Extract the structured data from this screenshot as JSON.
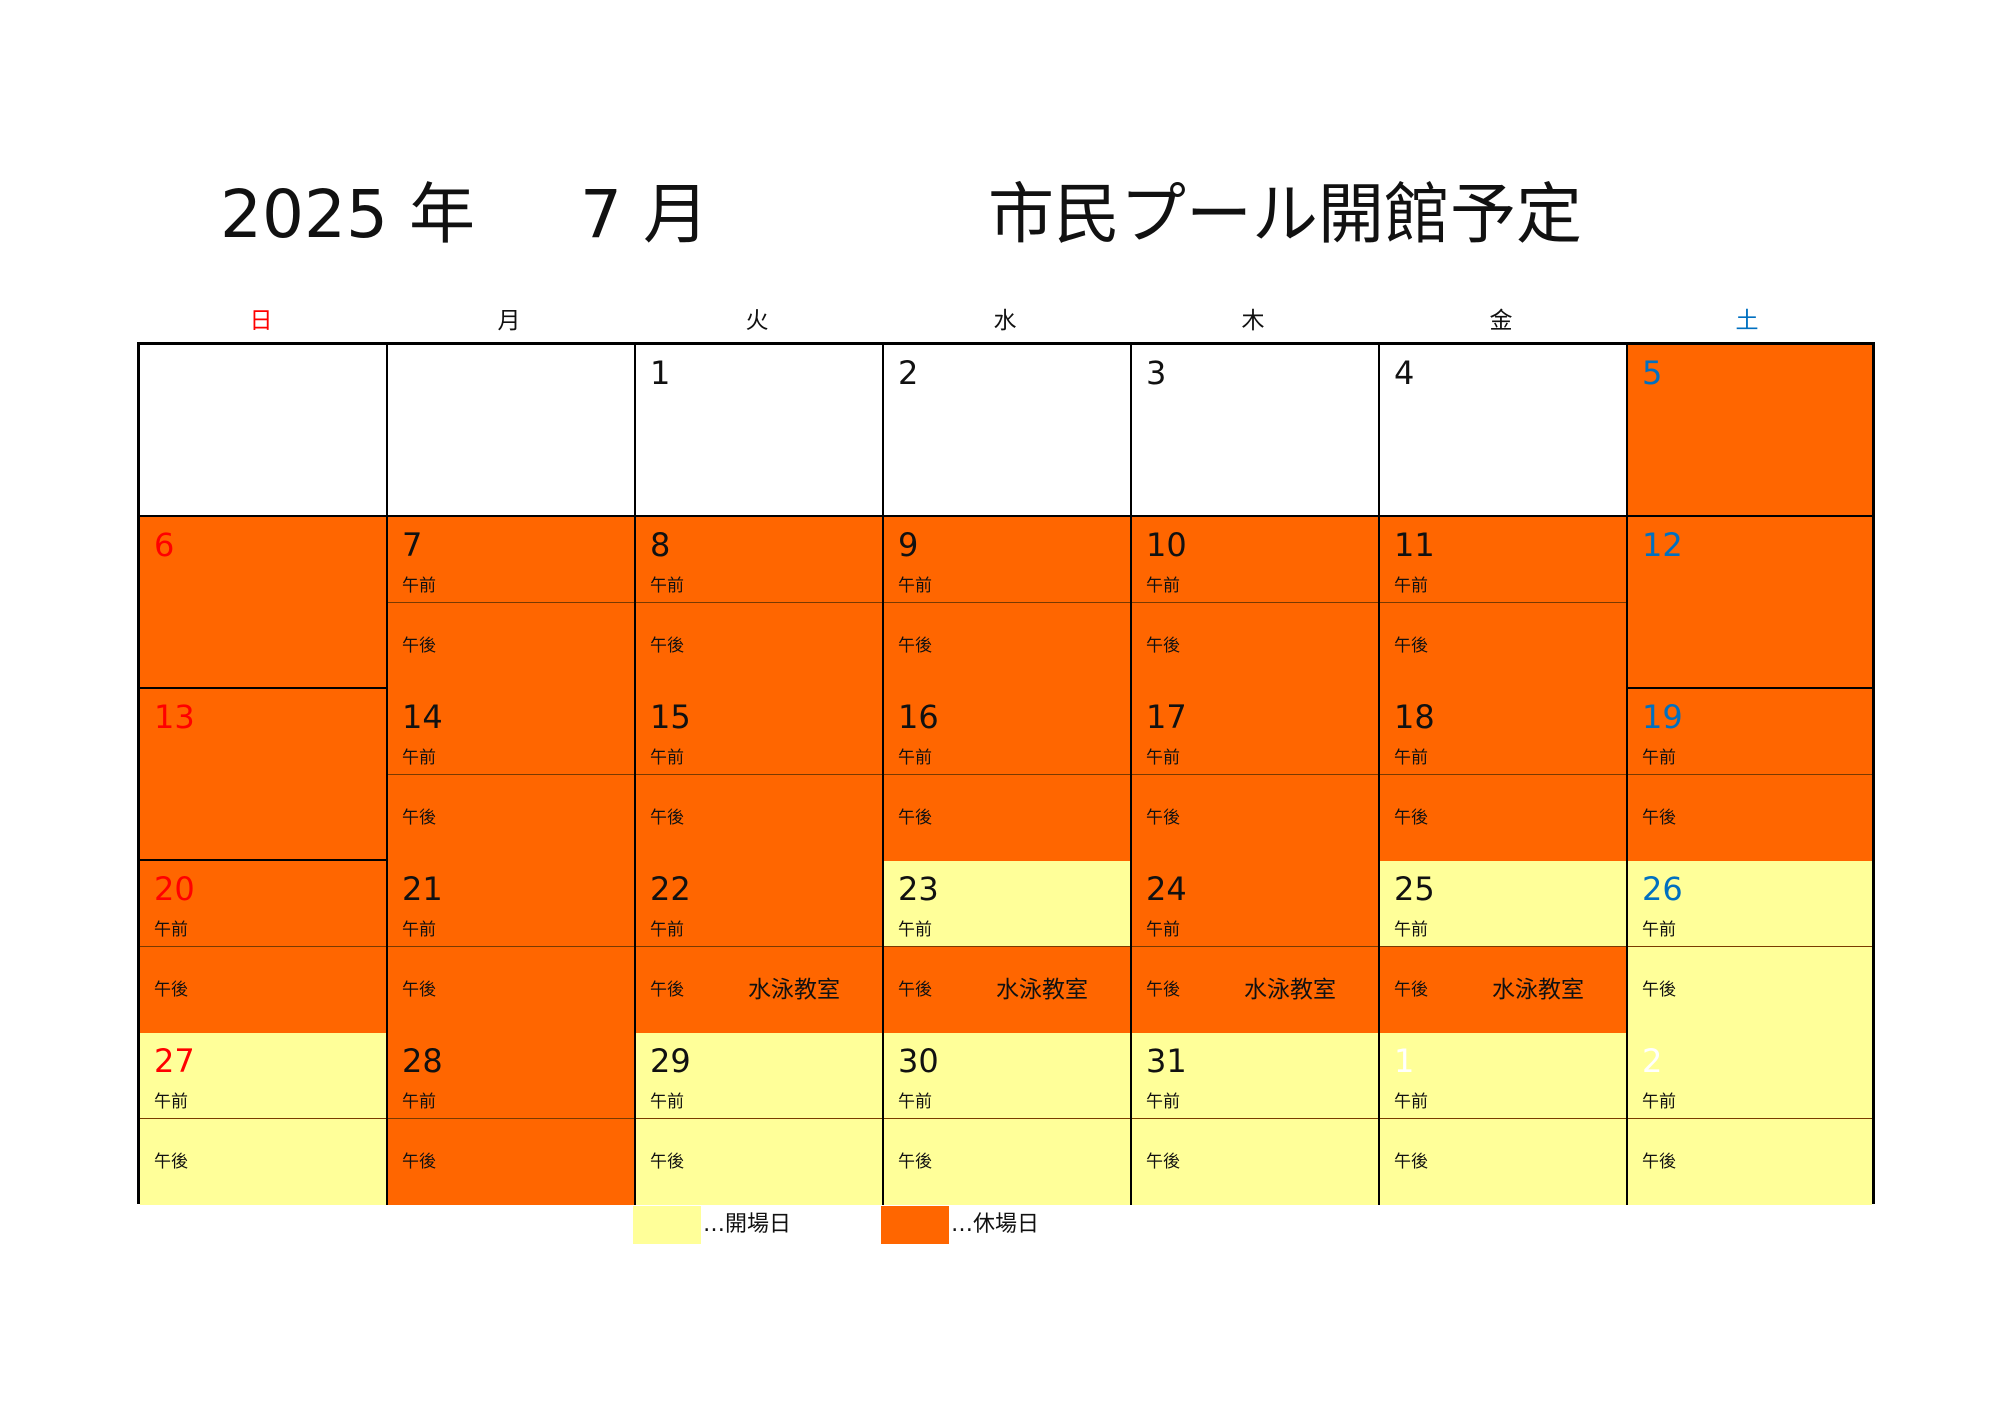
{
  "header": {
    "year": "2025 年",
    "month": "7 月",
    "title": "市民プール開館予定"
  },
  "colors": {
    "open": "#ffff99",
    "closed": "#ff6600",
    "white": "#ffffff",
    "sunday": "#ff0000",
    "saturday": "#0070c0",
    "text": "#111111"
  },
  "weekdays": [
    {
      "label": "日",
      "kind": "sun"
    },
    {
      "label": "月",
      "kind": "wd"
    },
    {
      "label": "火",
      "kind": "wd"
    },
    {
      "label": "水",
      "kind": "wd"
    },
    {
      "label": "木",
      "kind": "wd"
    },
    {
      "label": "金",
      "kind": "wd"
    },
    {
      "label": "土",
      "kind": "sat"
    }
  ],
  "slot_labels": {
    "am": "午前",
    "pm": "午後"
  },
  "weeks": [
    [
      {
        "day": "",
        "status": "white",
        "slots": false
      },
      {
        "day": "",
        "status": "white",
        "slots": false
      },
      {
        "day": "1",
        "status": "white",
        "slots": false
      },
      {
        "day": "2",
        "status": "white",
        "slots": false
      },
      {
        "day": "3",
        "status": "white",
        "slots": false
      },
      {
        "day": "4",
        "status": "white",
        "slots": false
      },
      {
        "day": "5",
        "status": "closed",
        "slots": false
      }
    ],
    [
      {
        "day": "6",
        "status": "closed",
        "slots": false
      },
      {
        "day": "7",
        "am": "closed",
        "pm": "closed",
        "slots": true
      },
      {
        "day": "8",
        "am": "closed",
        "pm": "closed",
        "slots": true
      },
      {
        "day": "9",
        "am": "closed",
        "pm": "closed",
        "slots": true
      },
      {
        "day": "10",
        "am": "closed",
        "pm": "closed",
        "slots": true
      },
      {
        "day": "11",
        "am": "closed",
        "pm": "closed",
        "slots": true
      },
      {
        "day": "12",
        "status": "closed",
        "slots": false
      }
    ],
    [
      {
        "day": "13",
        "status": "closed",
        "slots": false
      },
      {
        "day": "14",
        "am": "closed",
        "pm": "closed",
        "slots": true
      },
      {
        "day": "15",
        "am": "closed",
        "pm": "closed",
        "slots": true
      },
      {
        "day": "16",
        "am": "closed",
        "pm": "closed",
        "slots": true
      },
      {
        "day": "17",
        "am": "closed",
        "pm": "closed",
        "slots": true
      },
      {
        "day": "18",
        "am": "closed",
        "pm": "closed",
        "slots": true
      },
      {
        "day": "19",
        "am": "closed",
        "pm": "closed",
        "slots": true
      }
    ],
    [
      {
        "day": "20",
        "am": "closed",
        "pm": "closed",
        "slots": true
      },
      {
        "day": "21",
        "am": "closed",
        "pm": "closed",
        "slots": true
      },
      {
        "day": "22",
        "am": "closed",
        "pm": "closed",
        "slots": true,
        "pm_event": "水泳教室"
      },
      {
        "day": "23",
        "am": "open",
        "pm": "closed",
        "slots": true,
        "pm_event": "水泳教室"
      },
      {
        "day": "24",
        "am": "closed",
        "pm": "closed",
        "slots": true,
        "pm_event": "水泳教室"
      },
      {
        "day": "25",
        "am": "open",
        "pm": "closed",
        "slots": true,
        "pm_event": "水泳教室"
      },
      {
        "day": "26",
        "am": "open",
        "pm": "open",
        "slots": true
      }
    ],
    [
      {
        "day": "27",
        "am": "open",
        "pm": "open",
        "slots": true
      },
      {
        "day": "28",
        "am": "closed",
        "pm": "closed",
        "slots": true
      },
      {
        "day": "29",
        "am": "open",
        "pm": "open",
        "slots": true
      },
      {
        "day": "30",
        "am": "open",
        "pm": "open",
        "slots": true
      },
      {
        "day": "31",
        "am": "open",
        "pm": "open",
        "slots": true
      },
      {
        "day": "1",
        "am": "open",
        "pm": "open",
        "slots": true,
        "faded": true
      },
      {
        "day": "2",
        "am": "open",
        "pm": "open",
        "slots": true,
        "faded": true
      }
    ]
  ],
  "legend": [
    {
      "label": "…開場日",
      "status": "open"
    },
    {
      "label": "…休場日",
      "status": "closed"
    }
  ]
}
